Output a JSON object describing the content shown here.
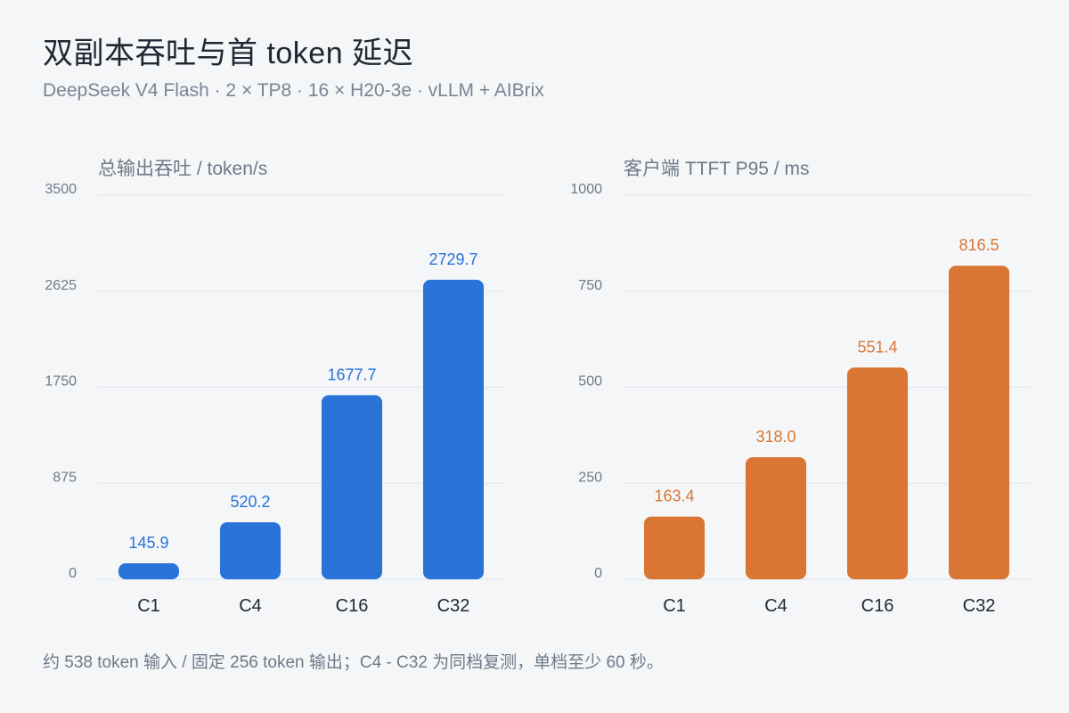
{
  "header": {
    "title": "双副本吞吐与首 token 延迟",
    "subtitle": "DeepSeek V4 Flash  ·  2 × TP8  ·  16 × H20-3e  ·  vLLM + AIBrix"
  },
  "footnote": "约 538 token 输入 / 固定 256 token 输出；C4 - C32 为同档复测，单档至少 60 秒。",
  "chart_data": [
    {
      "type": "bar",
      "title": "总输出吞吐 / token/s",
      "categories": [
        "C1",
        "C4",
        "C16",
        "C32"
      ],
      "values": [
        145.9,
        520.2,
        1677.7,
        2729.7
      ],
      "value_labels": [
        "145.9",
        "520.2",
        "1677.7",
        "2729.7"
      ],
      "ylim": [
        0,
        3500
      ],
      "yticks": [
        0,
        875,
        1750,
        2625,
        3500
      ],
      "ytick_labels": [
        "0",
        "875",
        "1750",
        "2625",
        "3500"
      ],
      "color": "#2a73d8",
      "grid": true
    },
    {
      "type": "bar",
      "title": "客户端 TTFT P95 / ms",
      "categories": [
        "C1",
        "C4",
        "C16",
        "C32"
      ],
      "values": [
        163.4,
        318.0,
        551.4,
        816.5
      ],
      "value_labels": [
        "163.4",
        "318.0",
        "551.4",
        "816.5"
      ],
      "ylim": [
        0,
        1000
      ],
      "yticks": [
        0,
        250,
        500,
        750,
        1000
      ],
      "ytick_labels": [
        "0",
        "250",
        "500",
        "750",
        "1000"
      ],
      "color": "#d97634",
      "grid": true
    }
  ]
}
